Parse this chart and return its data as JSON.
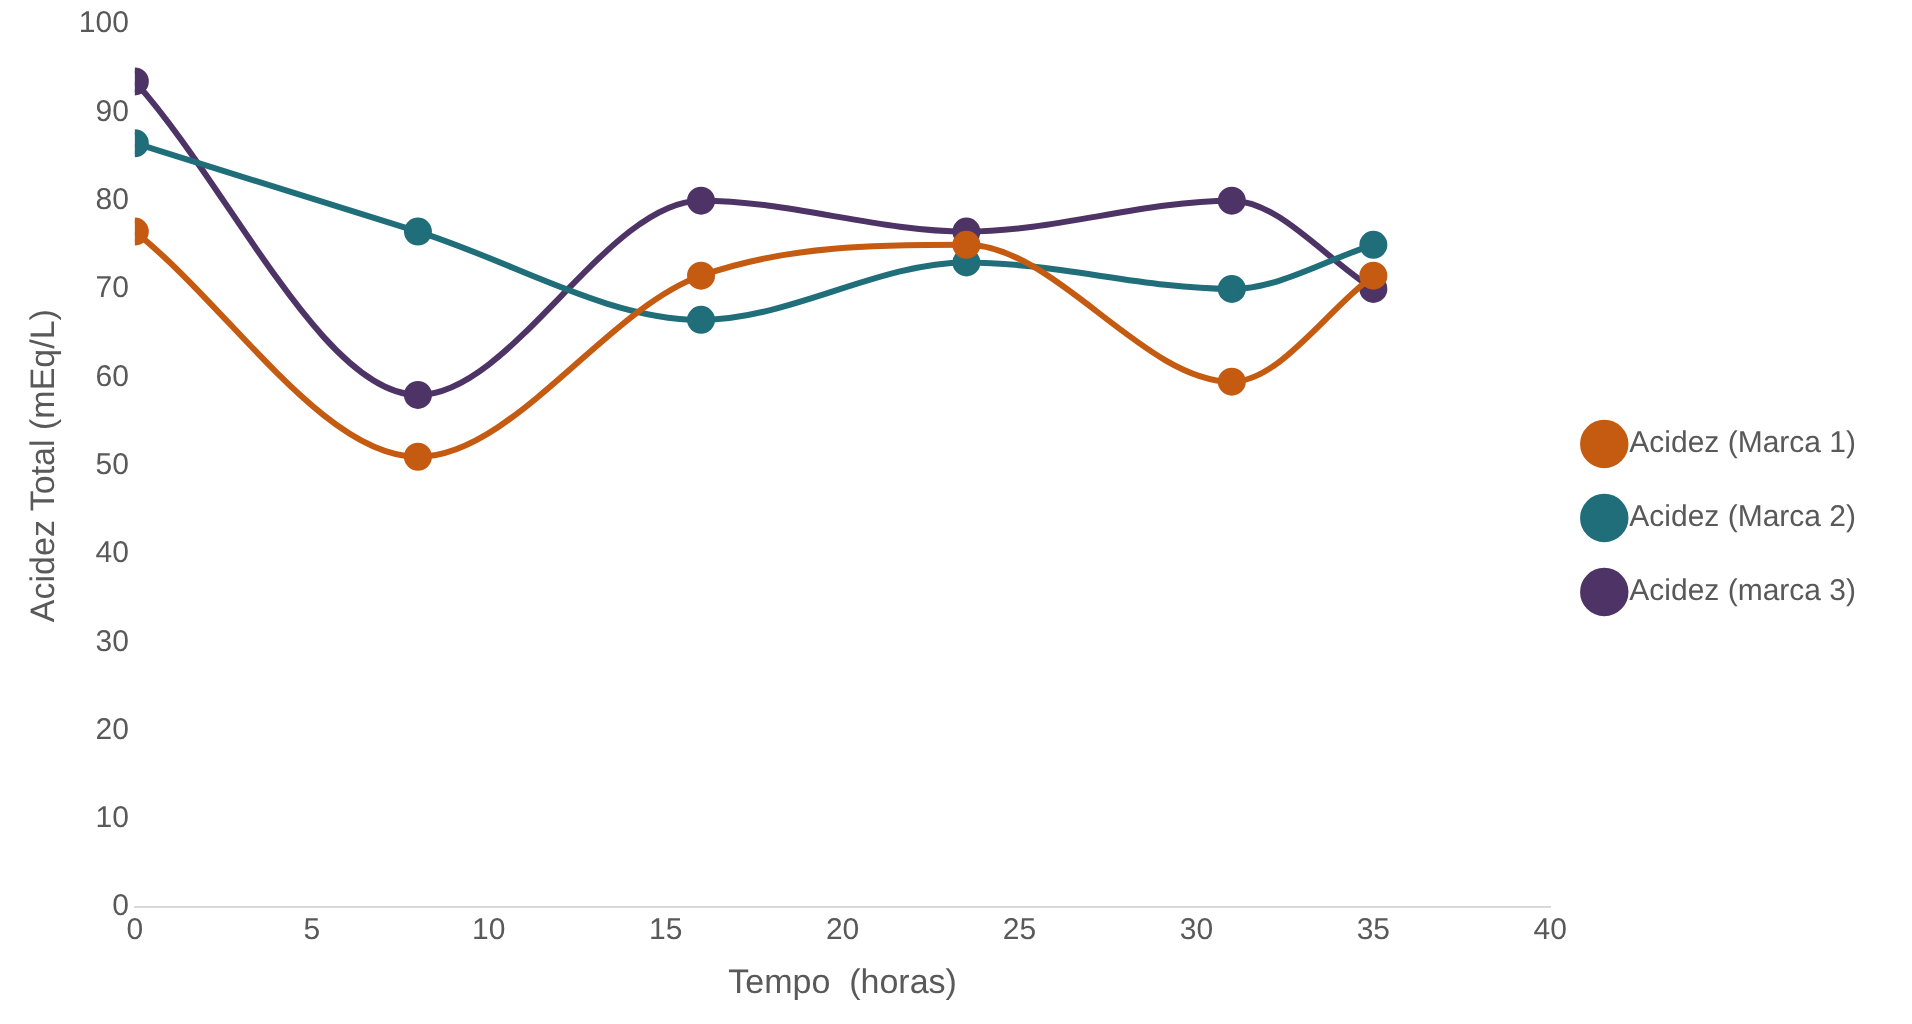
{
  "chart_data": {
    "type": "line",
    "xlabel": "Tempo  (horas)",
    "ylabel": "Acidez Total (mEq/L)",
    "xlim": [
      0,
      40
    ],
    "xticks": [
      0,
      5,
      10,
      15,
      20,
      25,
      30,
      35,
      40
    ],
    "ylim": [
      0,
      100
    ],
    "yticks": [
      0,
      10,
      20,
      30,
      40,
      50,
      60,
      70,
      80,
      90,
      100
    ],
    "grid": false,
    "legend": "right",
    "marker": "circle",
    "line_style": "solid",
    "series": [
      {
        "name": "Acidez (Marca 1)",
        "color": "#c55a11",
        "x": [
          0,
          8,
          16,
          23.5,
          31,
          35
        ],
        "values": [
          76.5,
          51,
          71.5,
          75,
          59.5,
          71.5
        ]
      },
      {
        "name": "Acidez (Marca 2)",
        "color": "#1f6e7a",
        "x": [
          0,
          8,
          16,
          23.5,
          31,
          35
        ],
        "values": [
          86.5,
          76.5,
          66.5,
          73,
          70,
          75
        ]
      },
      {
        "name": "Acidez (marca 3)",
        "color": "#4e3466",
        "x": [
          0,
          8,
          16,
          23.5,
          31,
          35
        ],
        "values": [
          93.5,
          58,
          80,
          76.5,
          80,
          70
        ]
      }
    ]
  }
}
